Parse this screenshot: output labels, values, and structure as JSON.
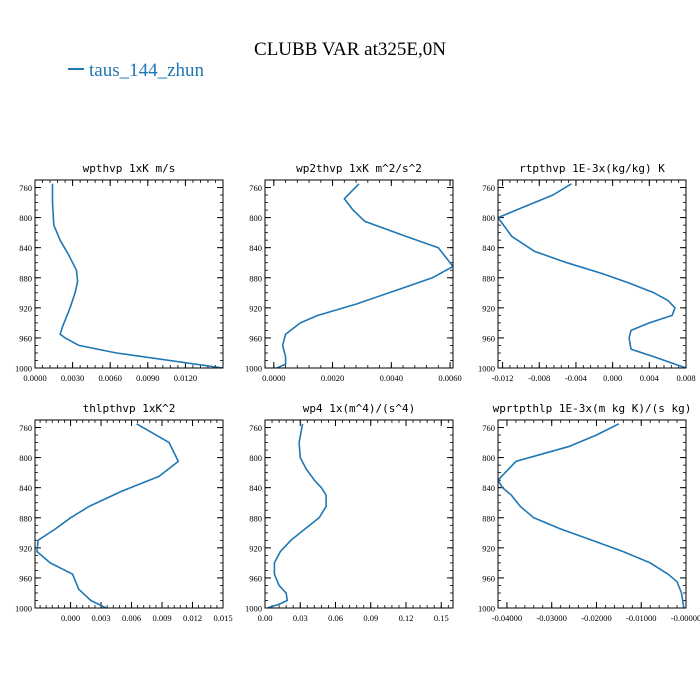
{
  "figure": {
    "title": "CLUBB VAR at325E,0N",
    "legend": {
      "entries": [
        {
          "label": "taus_144_zhun",
          "color": "#1f77b4"
        }
      ]
    }
  },
  "chart_data": [
    {
      "type": "line",
      "title": "wpthvp  1xK m/s",
      "xlim": [
        0.0,
        0.015
      ],
      "ylim": [
        1000,
        750
      ],
      "xticks": [
        0.0,
        0.003,
        0.006,
        0.009,
        0.012
      ],
      "xtick_labels": [
        "0.0000",
        "0.0030",
        "0.0060",
        "0.0090",
        "0.0120"
      ],
      "yticks": [
        760,
        800,
        840,
        880,
        920,
        960,
        1000
      ],
      "ytick_labels": [
        "760",
        "800",
        "840",
        "880",
        "920",
        "960",
        "1000"
      ],
      "series": [
        {
          "color": "#1f77b4",
          "x": [
            0.0014,
            0.0014,
            0.0015,
            0.002,
            0.0027,
            0.0033,
            0.0034,
            0.0032,
            0.0028,
            0.0022,
            0.002,
            0.0024,
            0.0035,
            0.0065,
            0.015
          ],
          "y": [
            755,
            780,
            810,
            830,
            850,
            870,
            885,
            900,
            920,
            945,
            955,
            960,
            970,
            980,
            1000
          ]
        }
      ]
    },
    {
      "type": "line",
      "title": "wp2thvp  1xK m^2/s^2",
      "xlim": [
        -0.0003,
        0.0061
      ],
      "ylim": [
        1000,
        750
      ],
      "xticks": [
        0.0,
        0.002,
        0.004,
        0.006
      ],
      "xtick_labels": [
        "0.0000",
        "0.0020",
        "0.0040",
        "0.0060"
      ],
      "yticks": [
        760,
        800,
        840,
        880,
        920,
        960,
        1000
      ],
      "ytick_labels": [
        "760",
        "800",
        "840",
        "880",
        "920",
        "960",
        "1000"
      ],
      "series": [
        {
          "color": "#1f77b4",
          "x": [
            0.0029,
            0.0024,
            0.0027,
            0.0031,
            0.0045,
            0.0056,
            0.0061,
            0.0054,
            0.0043,
            0.0028,
            0.0015,
            0.0009,
            0.0004,
            0.0003,
            0.0004,
            0.0004,
            0.0001
          ],
          "y": [
            755,
            775,
            790,
            805,
            825,
            840,
            865,
            880,
            895,
            915,
            930,
            940,
            955,
            970,
            985,
            995,
            1000
          ]
        }
      ]
    },
    {
      "type": "line",
      "title": "rtpthvp  1E-3x(kg/kg) K",
      "xlim": [
        -0.0125,
        0.008
      ],
      "ylim": [
        1000,
        750
      ],
      "xticks": [
        -0.012,
        -0.008,
        -0.004,
        0.0,
        0.004,
        0.008
      ],
      "xtick_labels": [
        "-0.012",
        "-0.008",
        "-0.004",
        "0.000",
        "0.004",
        "0.008"
      ],
      "yticks": [
        760,
        800,
        840,
        880,
        920,
        960,
        1000
      ],
      "ytick_labels": [
        "760",
        "800",
        "840",
        "880",
        "920",
        "960",
        "1000"
      ],
      "series": [
        {
          "color": "#1f77b4",
          "x": [
            -0.0045,
            -0.0065,
            -0.0095,
            -0.0125,
            -0.011,
            -0.0085,
            -0.005,
            -0.001,
            0.002,
            0.0045,
            0.006,
            0.0068,
            0.0065,
            0.004,
            0.002,
            0.0018,
            0.002,
            0.0045,
            0.008
          ],
          "y": [
            755,
            770,
            785,
            800,
            825,
            845,
            860,
            875,
            888,
            900,
            910,
            920,
            930,
            940,
            950,
            960,
            975,
            985,
            1000
          ]
        }
      ]
    },
    {
      "type": "line",
      "title": "thlpthvp  1xK^2",
      "xlim": [
        -0.0035,
        0.015
      ],
      "ylim": [
        1000,
        750
      ],
      "xticks": [
        0.0,
        0.003,
        0.006,
        0.009,
        0.012,
        0.015
      ],
      "xtick_labels": [
        "0.000",
        "0.003",
        "0.006",
        "0.009",
        "0.012",
        "0.015"
      ],
      "yticks": [
        760,
        800,
        840,
        880,
        920,
        960,
        1000
      ],
      "ytick_labels": [
        "760",
        "800",
        "840",
        "880",
        "920",
        "960",
        "1000"
      ],
      "series": [
        {
          "color": "#1f77b4",
          "x": [
            0.0065,
            0.0097,
            0.0106,
            0.0087,
            0.005,
            0.0018,
            0.0,
            -0.0015,
            -0.0032,
            -0.0033,
            -0.002,
            0.0002,
            0.0005,
            0.0008,
            0.002,
            0.0035
          ],
          "y": [
            755,
            780,
            805,
            825,
            845,
            865,
            880,
            895,
            910,
            925,
            940,
            955,
            965,
            975,
            990,
            1000
          ]
        }
      ]
    },
    {
      "type": "line",
      "title": "wp4  1x(m^4)/(s^4)",
      "xlim": [
        0.0,
        0.16
      ],
      "ylim": [
        1000,
        750
      ],
      "xticks": [
        0.0,
        0.03,
        0.06,
        0.09,
        0.12,
        0.15
      ],
      "xtick_labels": [
        "0.00",
        "0.03",
        "0.06",
        "0.09",
        "0.12",
        "0.15"
      ],
      "yticks": [
        760,
        800,
        840,
        880,
        920,
        960,
        1000
      ],
      "ytick_labels": [
        "760",
        "800",
        "840",
        "880",
        "920",
        "960",
        "1000"
      ],
      "series": [
        {
          "color": "#1f77b4",
          "x": [
            0.032,
            0.029,
            0.03,
            0.035,
            0.042,
            0.048,
            0.052,
            0.052,
            0.046,
            0.034,
            0.022,
            0.013,
            0.008,
            0.008,
            0.012,
            0.018,
            0.019,
            0.012,
            0.002
          ],
          "y": [
            755,
            780,
            800,
            815,
            830,
            840,
            850,
            865,
            880,
            895,
            910,
            925,
            940,
            955,
            970,
            980,
            990,
            995,
            1000
          ]
        }
      ]
    },
    {
      "type": "line",
      "title": "wprtpthlp  1E-3x(m kg K)/(s kg)",
      "xlim": [
        -0.042,
        0.0
      ],
      "ylim": [
        1000,
        750
      ],
      "xticks": [
        -0.04,
        -0.03,
        -0.02,
        -0.01,
        0.0
      ],
      "xtick_labels": [
        "-0.04000",
        "-0.03000",
        "-0.02000",
        "-0.01000",
        "-0.00000"
      ],
      "yticks": [
        760,
        800,
        840,
        880,
        920,
        960,
        1000
      ],
      "ytick_labels": [
        "760",
        "800",
        "840",
        "880",
        "920",
        "960",
        "1000"
      ],
      "series": [
        {
          "color": "#1f77b4",
          "x": [
            -0.015,
            -0.02,
            -0.026,
            -0.032,
            -0.038,
            -0.042,
            -0.041,
            -0.039,
            -0.037,
            -0.034,
            -0.028,
            -0.021,
            -0.014,
            -0.008,
            -0.004,
            -0.002,
            -0.001,
            -0.0005
          ],
          "y": [
            755,
            770,
            785,
            795,
            805,
            830,
            840,
            850,
            865,
            880,
            895,
            910,
            925,
            940,
            955,
            965,
            980,
            1000
          ]
        }
      ]
    }
  ]
}
